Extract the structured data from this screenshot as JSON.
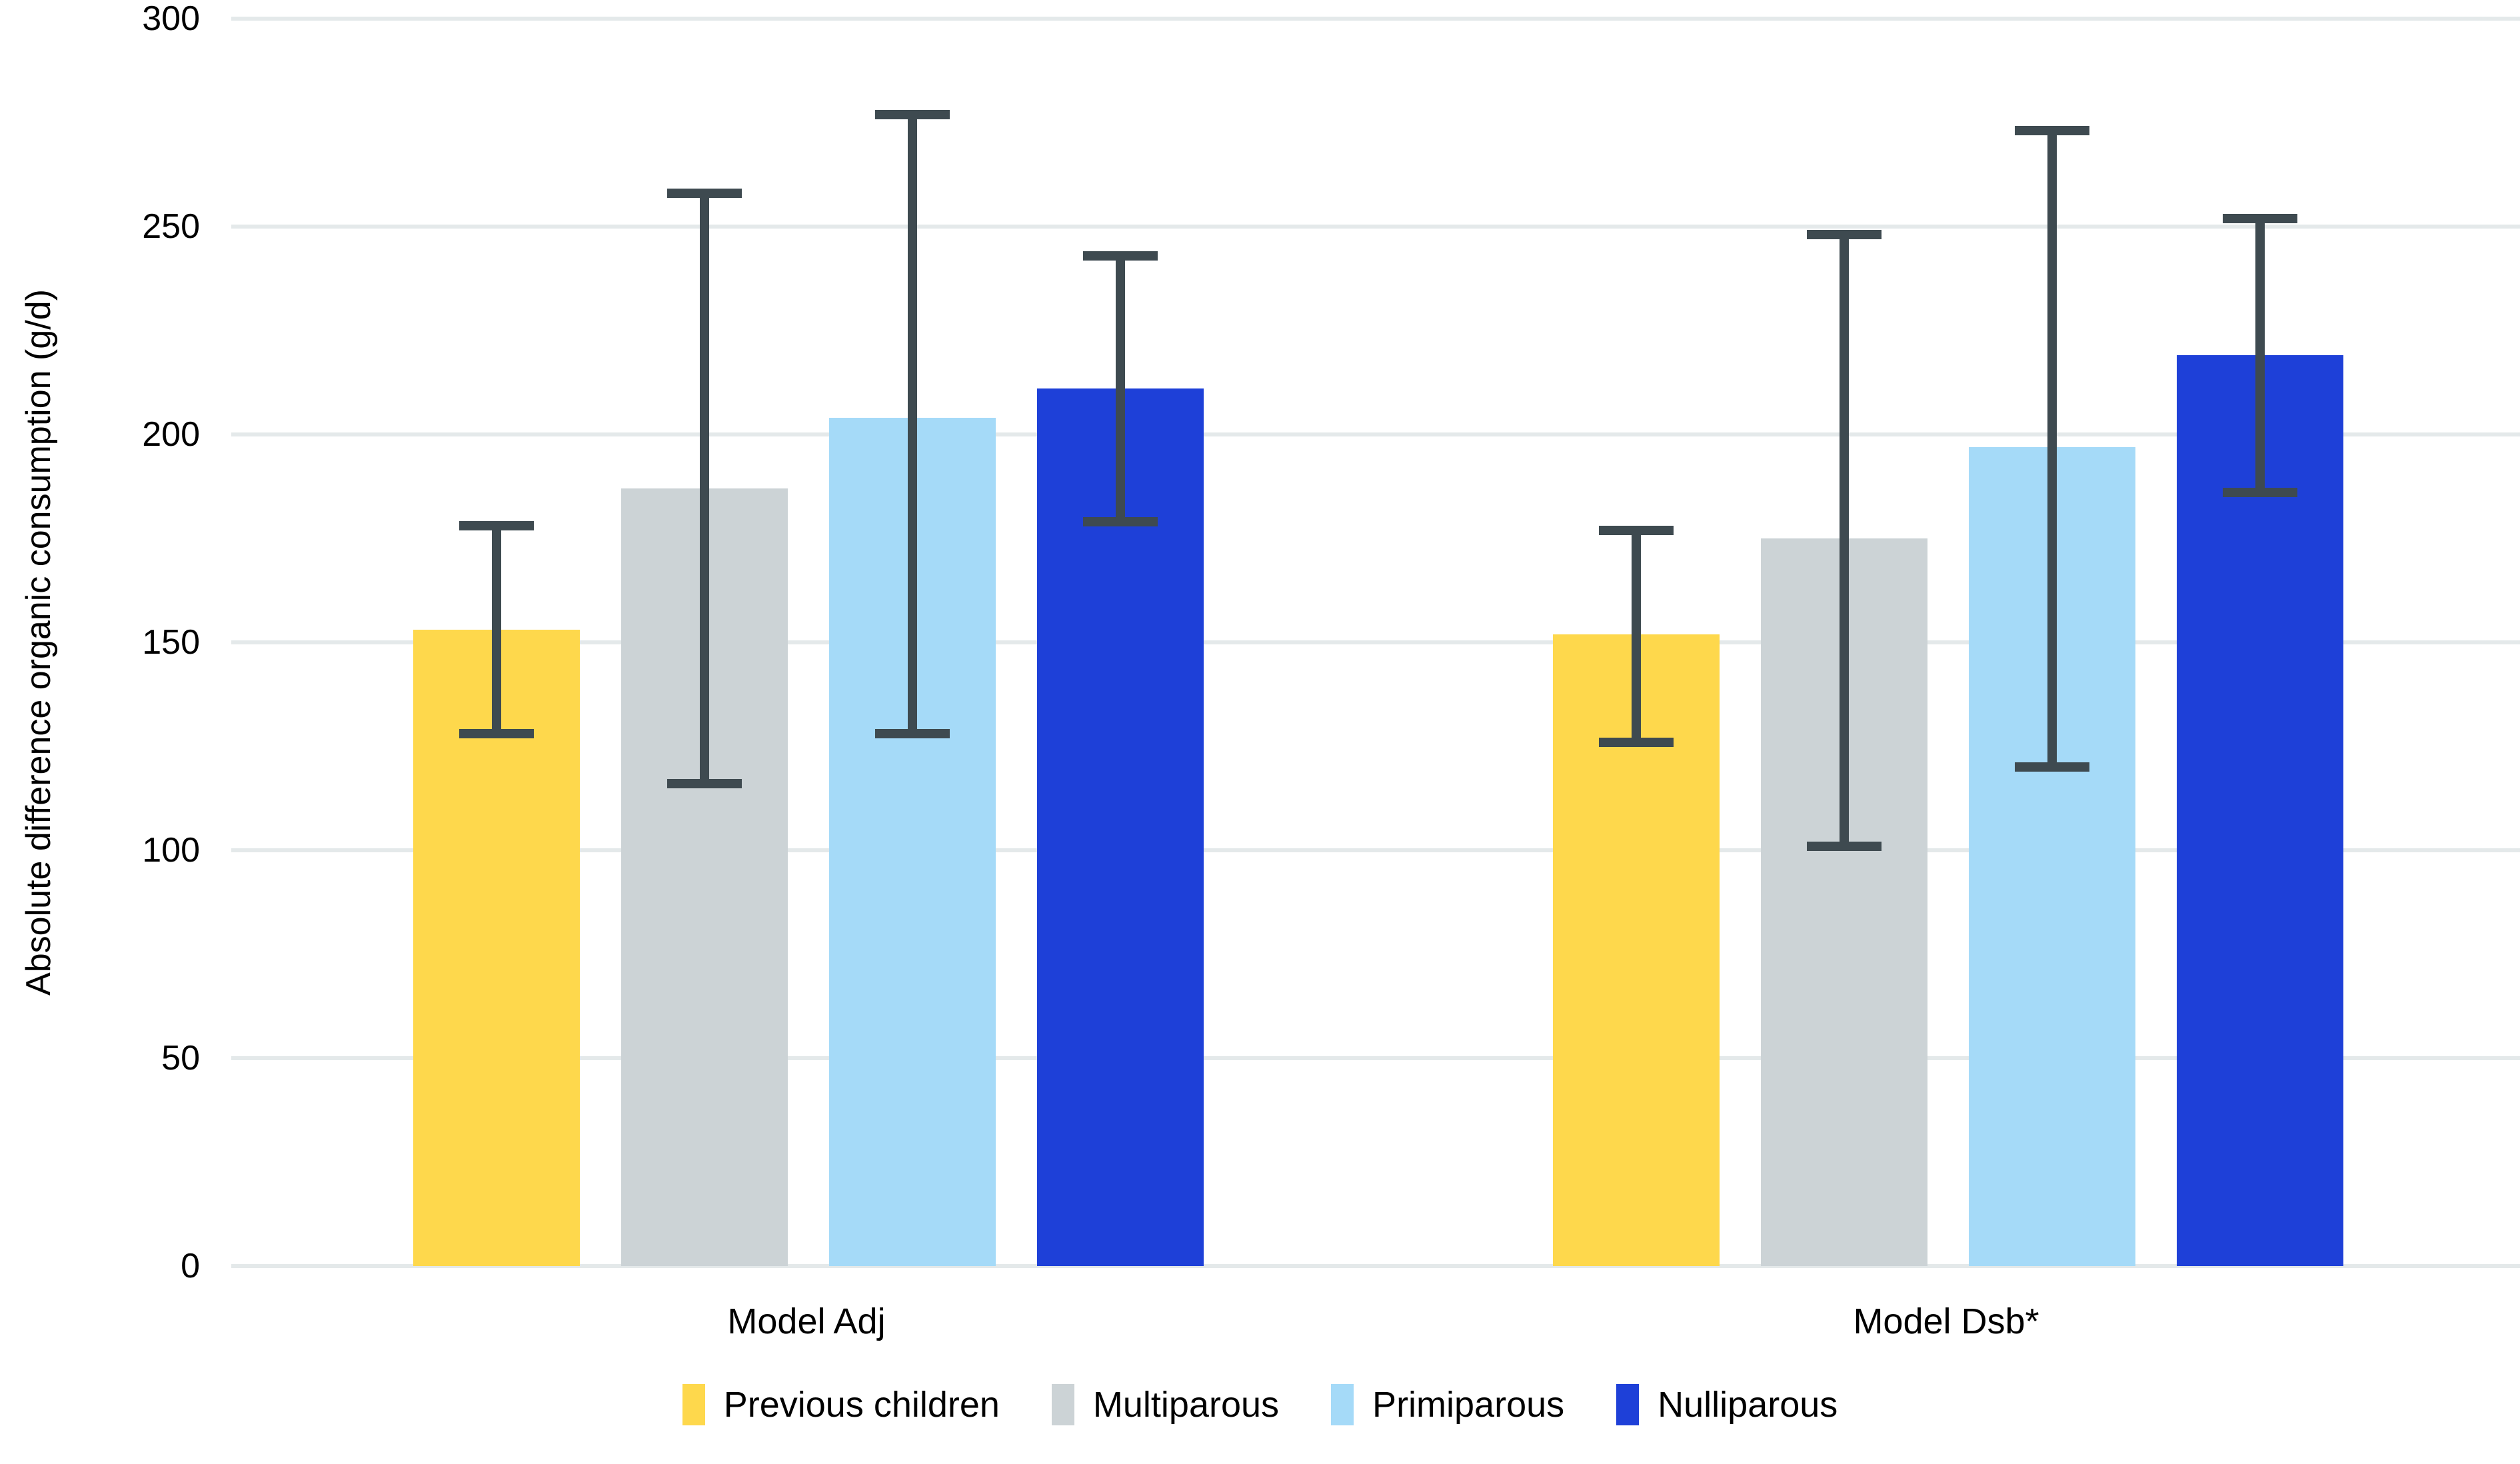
{
  "chart_data": {
    "type": "bar",
    "title": "",
    "ylabel": "Absolute difference organic consumption (g/d)",
    "xlabel": "",
    "ymin": 0,
    "ymax": 300,
    "ytick_step": 50,
    "yticks": [
      0,
      50,
      100,
      150,
      200,
      250,
      300
    ],
    "grid": "horizontal",
    "legend_position": "bottom",
    "categories": [
      "Model Adj",
      "Model Dsb*"
    ],
    "series": [
      {
        "name": "Previous children",
        "color": "#fed84c",
        "values": [
          153,
          152
        ],
        "ci_low": [
          128,
          126
        ],
        "ci_high": [
          178,
          177
        ]
      },
      {
        "name": "Multiparous",
        "color": "#ccd3d6",
        "values": [
          187,
          175
        ],
        "ci_low": [
          116,
          101
        ],
        "ci_high": [
          258,
          248
        ]
      },
      {
        "name": "Primiparous",
        "color": "#a5daf8",
        "values": [
          204,
          197
        ],
        "ci_low": [
          128,
          120
        ],
        "ci_high": [
          277,
          273
        ]
      },
      {
        "name": "Nulliparous",
        "color": "#1e40d8",
        "values": [
          211,
          219
        ],
        "ci_low": [
          179,
          186
        ],
        "ci_high": [
          243,
          252
        ]
      }
    ],
    "error_bar_color": "#3e4a50",
    "gridline_color": "#e4e9ea",
    "tick_label_color": "#000000"
  }
}
